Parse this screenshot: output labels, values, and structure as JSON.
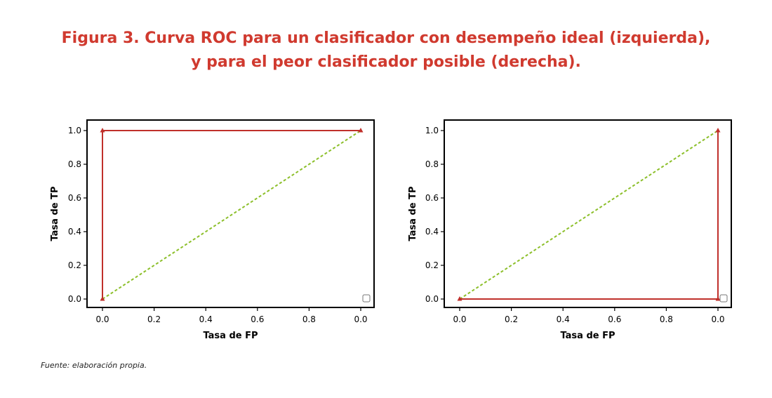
{
  "figure": {
    "title_line1": "Figura 3. Curva ROC para un clasificador con desempeño ideal (izquierda),",
    "title_line2": "y para el peor clasificador posible (derecha).",
    "caption": "Fuente: elaboración propia."
  },
  "colors": {
    "title": "#d03a2f",
    "roc_line": "#c0302b",
    "diagonal": "#8cbf2a",
    "axis": "#000000"
  },
  "chart_data": [
    {
      "type": "line",
      "xlabel": "Tasa de FP",
      "ylabel": "Tasa de TP",
      "x_ticks": [
        "0.0",
        "0.2",
        "0.4",
        "0.6",
        "0.8",
        "0.0"
      ],
      "y_ticks": [
        "0.0",
        "0.2",
        "0.4",
        "0.6",
        "0.8",
        "1.0"
      ],
      "xlim": [
        0,
        1
      ],
      "ylim": [
        0,
        1
      ],
      "grid": false,
      "series": [
        {
          "style": "solid",
          "color": "#c0302b",
          "marker": "triangle",
          "points": [
            [
              0,
              0
            ],
            [
              0,
              1
            ],
            [
              1,
              1
            ]
          ]
        },
        {
          "style": "dashed",
          "color": "#8cbf2a",
          "points": [
            [
              0,
              0
            ],
            [
              1,
              1
            ]
          ]
        }
      ],
      "legend": "bottom-right"
    },
    {
      "type": "line",
      "xlabel": "Tasa de FP",
      "ylabel": "Tasa de TP",
      "x_ticks": [
        "0.0",
        "0.2",
        "0.4",
        "0.6",
        "0.8",
        "0.0"
      ],
      "y_ticks": [
        "0.0",
        "0.2",
        "0.4",
        "0.6",
        "0.8",
        "1.0"
      ],
      "xlim": [
        0,
        1
      ],
      "ylim": [
        0,
        1
      ],
      "grid": false,
      "series": [
        {
          "style": "solid",
          "color": "#c0302b",
          "marker": "triangle",
          "points": [
            [
              0,
              0
            ],
            [
              1,
              0
            ],
            [
              1,
              1
            ]
          ]
        },
        {
          "style": "dashed",
          "color": "#8cbf2a",
          "points": [
            [
              0,
              0
            ],
            [
              1,
              1
            ]
          ]
        }
      ],
      "legend": "bottom-right"
    }
  ]
}
